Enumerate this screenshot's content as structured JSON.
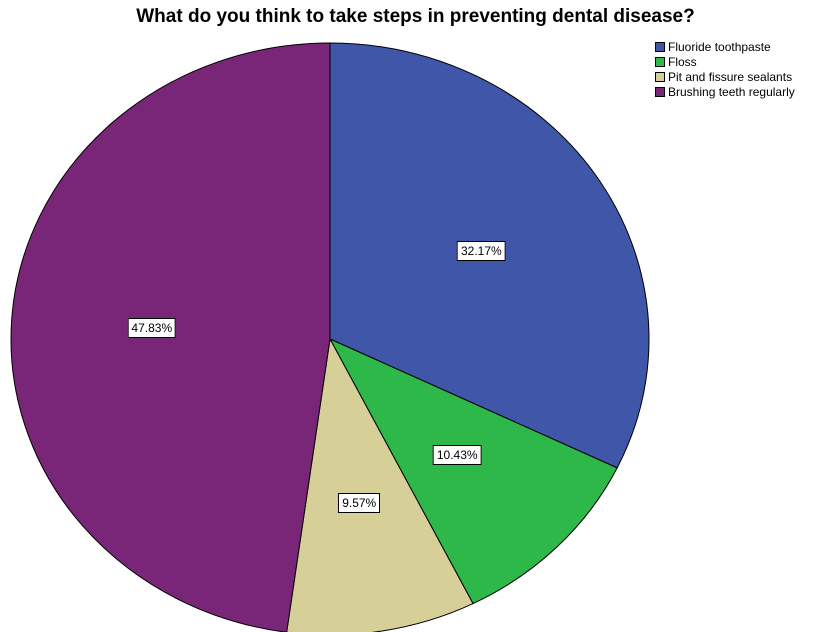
{
  "chart_data": {
    "type": "pie",
    "title": "What do you think to take steps in preventing dental disease?",
    "legend_position": "top-right",
    "slices": [
      {
        "name": "Fluoride toothpaste",
        "value": 32.17,
        "label": "32.17%",
        "color": "#3f56a9"
      },
      {
        "name": "Floss",
        "value": 10.43,
        "label": "10.43%",
        "color": "#2eb84a"
      },
      {
        "name": "Pit and fissure sealants",
        "value": 9.57,
        "label": "9.57%",
        "color": "#d6cf98"
      },
      {
        "name": "Brushing teeth regularly",
        "value": 47.83,
        "label": "47.83%",
        "color": "#7a2678"
      }
    ]
  }
}
